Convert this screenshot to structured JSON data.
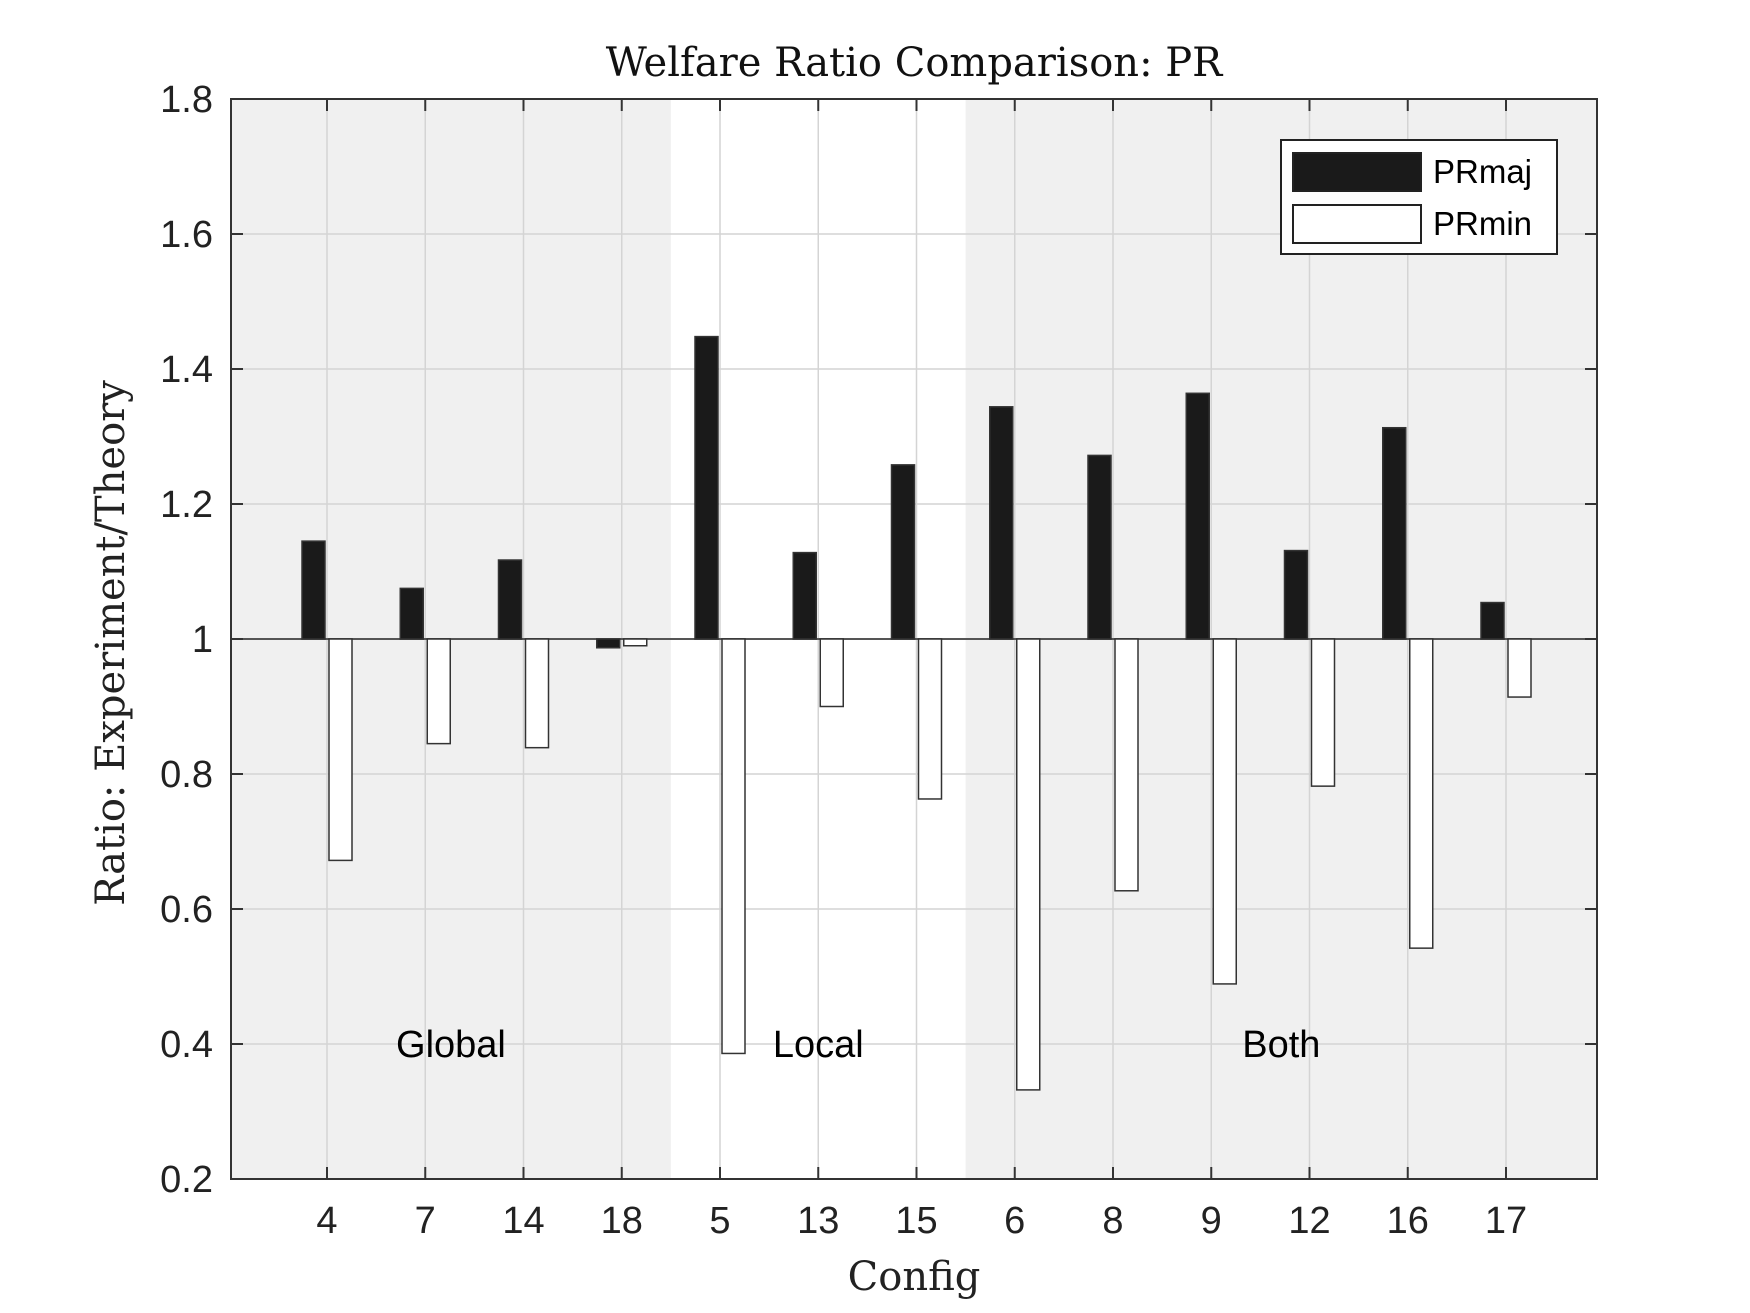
{
  "chart_data": {
    "type": "bar",
    "title": "Welfare Ratio Comparison: PR",
    "xlabel": "Config",
    "ylabel": "Ratio: Experiment/Theory",
    "ylim": [
      0.2,
      1.8
    ],
    "yticks": [
      "0.2",
      "0.4",
      "0.6",
      "0.8",
      "1",
      "1.2",
      "1.4",
      "1.6",
      "1.8"
    ],
    "baseline": 1,
    "grid": true,
    "legend_position": "top-right",
    "categories": [
      "4",
      "7",
      "14",
      "18",
      "5",
      "13",
      "15",
      "6",
      "8",
      "9",
      "12",
      "16",
      "17"
    ],
    "series": [
      {
        "name": "PRmaj",
        "fill": "#1a1a1a",
        "values": [
          1.145,
          1.075,
          1.117,
          0.987,
          1.448,
          1.128,
          1.258,
          1.344,
          1.272,
          1.364,
          1.131,
          1.313,
          1.054
        ]
      },
      {
        "name": "PRmin",
        "fill": "#ffffff",
        "values": [
          0.672,
          0.845,
          0.839,
          0.99,
          0.386,
          0.9,
          0.763,
          0.332,
          0.627,
          0.489,
          0.782,
          0.542,
          0.914
        ]
      }
    ],
    "groups": [
      {
        "label": "Global",
        "start": 0,
        "end": 3,
        "shaded": true
      },
      {
        "label": "Local",
        "start": 4,
        "end": 6,
        "shaded": false
      },
      {
        "label": "Both",
        "start": 7,
        "end": 12,
        "shaded": true
      }
    ],
    "colors": {
      "shade": "#f0f0f0",
      "grid": "#d4d4d4",
      "axis": "#333333",
      "bar_outline": "#333333"
    }
  }
}
